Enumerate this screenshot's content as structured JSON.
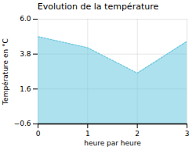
{
  "chart_data": {
    "type": "area",
    "title": "Evolution de la température",
    "x_label": "heure par heure",
    "y_label": "Température en °C",
    "x": [
      0,
      1,
      2,
      3
    ],
    "values": [
      4.9,
      4.2,
      2.6,
      4.6
    ],
    "baseline": -0.6,
    "color": "#6cc8e0",
    "line_style": "dotted",
    "xlim": [
      0,
      3
    ],
    "ylim": [
      -0.6,
      6.0
    ],
    "xticks": [
      0,
      1,
      2,
      3
    ],
    "yticks": [
      -0.6,
      1.6,
      3.8,
      {
        "value": 6.0,
        "label": "6.0"
      }
    ],
    "grid": true
  }
}
